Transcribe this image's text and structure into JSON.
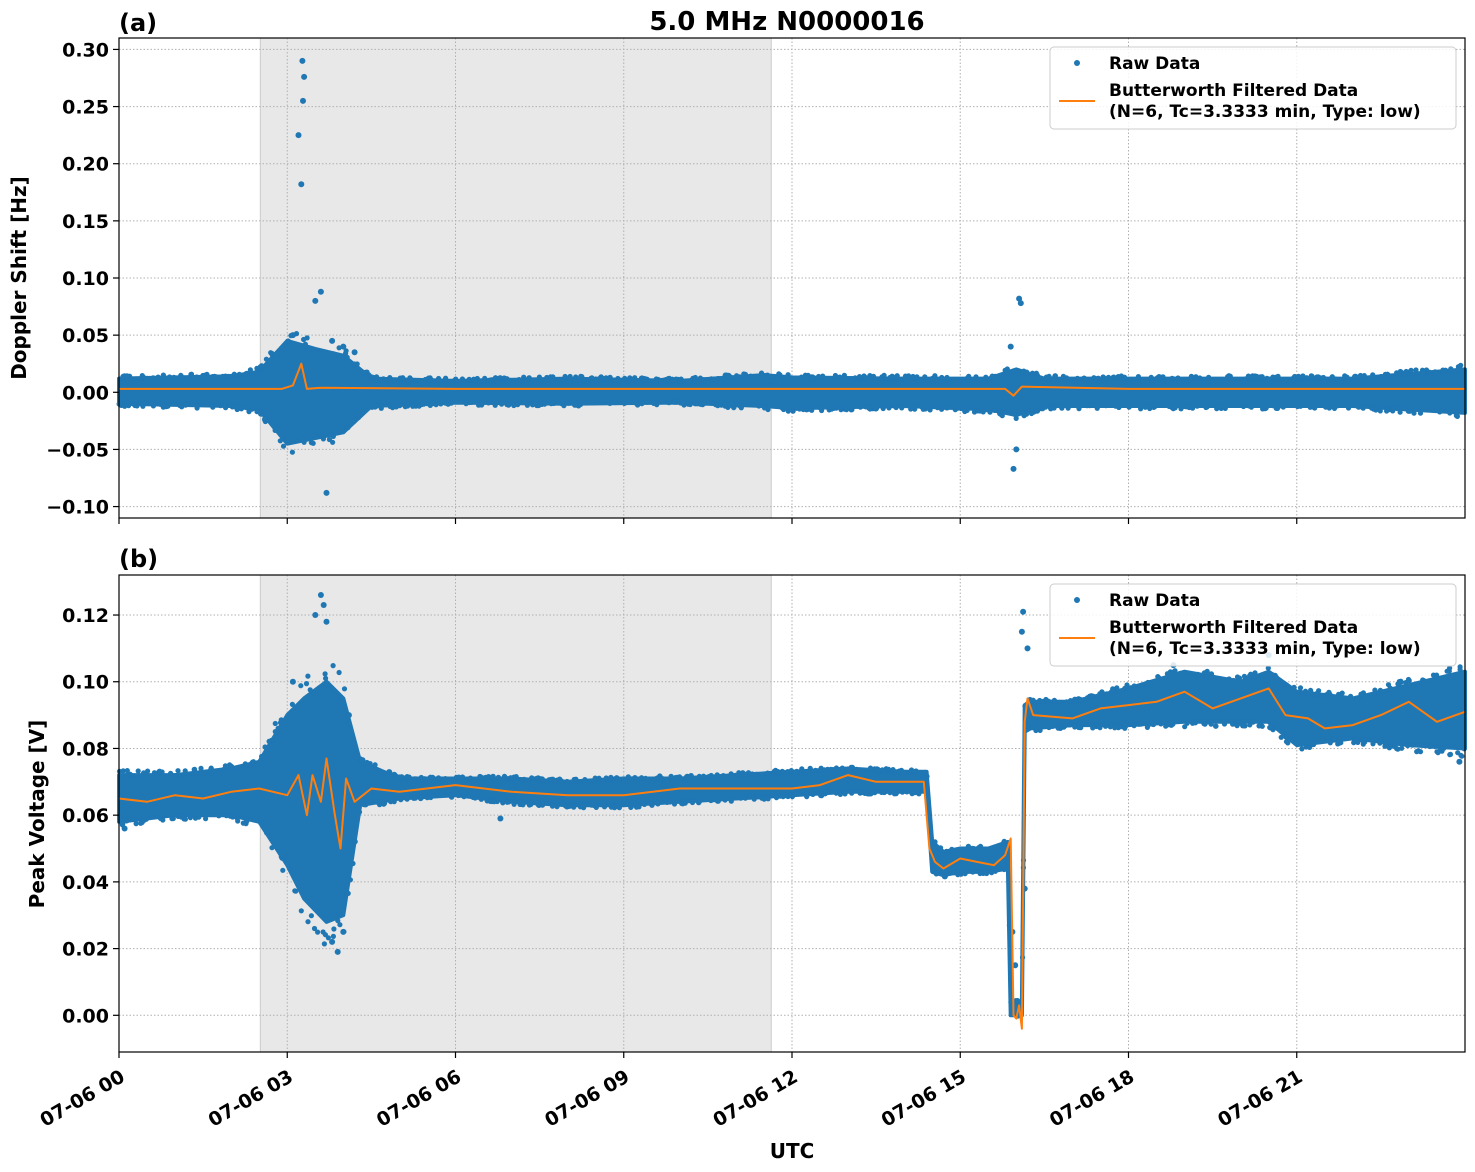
{
  "title": "5.0 MHz N0000016",
  "xlabel": "UTC",
  "x_ticks": [
    "07-06 00",
    "07-06 03",
    "07-06 06",
    "07-06 09",
    "07-06 12",
    "07-06 15",
    "07-06 18",
    "07-06 21"
  ],
  "colors": {
    "raw": "#1f77b4",
    "filtered": "#ff7f0e",
    "shade": "#e8e8e8"
  },
  "legend": {
    "raw": "Raw Data",
    "filtered_line1": "Butterworth Filtered Data",
    "filtered_line2": "(N=6, Tc=3.3333 min, Type: low)"
  },
  "panels": {
    "a": {
      "label": "(a)",
      "ylabel": "Doppler Shift [Hz]",
      "y_ticks": [
        "0.30",
        "0.25",
        "0.20",
        "0.15",
        "0.10",
        "0.05",
        "0.00",
        "−0.05",
        "−0.10"
      ]
    },
    "b": {
      "label": "(b)",
      "ylabel": "Peak Voltage [V]",
      "y_ticks": [
        "0.12",
        "0.10",
        "0.08",
        "0.06",
        "0.04",
        "0.02",
        "0.00"
      ]
    }
  },
  "chart_data": [
    {
      "type": "scatter",
      "panel": "(a)",
      "title": "5.0 MHz N0000016",
      "xlabel": "",
      "ylabel": "Doppler Shift [Hz]",
      "x_unit": "hours UTC on 07-06",
      "xlim": [
        0,
        24
      ],
      "ylim": [
        -0.11,
        0.31
      ],
      "grid": true,
      "legend_position": "top-right",
      "shaded_region_x": [
        2.52,
        11.63
      ],
      "series": [
        {
          "name": "Raw Data",
          "style": "points",
          "x": [
            0.5,
            2.0,
            2.9,
            3.1,
            3.2,
            3.25,
            3.27,
            3.28,
            3.3,
            3.5,
            3.6,
            3.7,
            3.8,
            4.0,
            4.2,
            8.0,
            11.6,
            14.0,
            15.9,
            15.95,
            16.0,
            16.05,
            16.08,
            23.9
          ],
          "y": [
            0.0,
            0.0,
            0.03,
            0.05,
            0.225,
            0.182,
            0.29,
            0.255,
            0.276,
            0.08,
            0.088,
            -0.088,
            0.045,
            0.04,
            0.035,
            0.0,
            0.01,
            0.0,
            0.04,
            -0.067,
            -0.05,
            0.082,
            0.078,
            0.02
          ],
          "envelope": {
            "x": [
              0,
              2,
              2.5,
              3.0,
              3.5,
              4.0,
              4.5,
              6,
              8,
              10,
              11.5,
              12,
              14,
              15.5,
              16.0,
              16.5,
              18,
              20,
              22,
              24
            ],
            "upper": [
              0.012,
              0.014,
              0.018,
              0.045,
              0.038,
              0.032,
              0.012,
              0.01,
              0.012,
              0.01,
              0.015,
              0.013,
              0.012,
              0.012,
              0.02,
              0.012,
              0.012,
              0.012,
              0.012,
              0.02
            ],
            "lower": [
              -0.01,
              -0.012,
              -0.015,
              -0.045,
              -0.04,
              -0.035,
              -0.012,
              -0.009,
              -0.01,
              -0.009,
              -0.012,
              -0.014,
              -0.012,
              -0.015,
              -0.02,
              -0.012,
              -0.012,
              -0.012,
              -0.012,
              -0.018
            ]
          }
        },
        {
          "name": "Butterworth Filtered Data\n(N=6, Tc=3.3333 min, Type: low)",
          "style": "line",
          "x": [
            0,
            2.9,
            3.1,
            3.25,
            3.35,
            3.6,
            6,
            10,
            14,
            15.8,
            15.95,
            16.1,
            18,
            24
          ],
          "y": [
            0.003,
            0.003,
            0.006,
            0.025,
            0.003,
            0.004,
            0.003,
            0.003,
            0.003,
            0.003,
            -0.003,
            0.005,
            0.003,
            0.003
          ]
        }
      ]
    },
    {
      "type": "scatter",
      "panel": "(b)",
      "title": "",
      "xlabel": "UTC",
      "ylabel": "Peak Voltage [V]",
      "x_unit": "hours UTC on 07-06",
      "xlim": [
        0,
        24
      ],
      "ylim": [
        -0.011,
        0.132
      ],
      "grid": true,
      "legend_position": "top-right",
      "shaded_region_x": [
        2.52,
        11.63
      ],
      "series": [
        {
          "name": "Raw Data",
          "style": "points",
          "x": [
            0.1,
            3.1,
            3.5,
            3.6,
            3.65,
            3.7,
            3.8,
            3.9,
            4.0,
            4.1,
            6.8,
            15.93,
            15.98,
            16.1,
            16.12,
            16.15,
            16.2,
            18.8,
            20.5,
            23.9
          ],
          "y": [
            0.056,
            0.1,
            0.12,
            0.126,
            0.123,
            0.118,
            0.022,
            0.019,
            0.025,
            0.09,
            0.059,
            0.025,
            0.015,
            0.115,
            0.121,
            0.038,
            0.11,
            0.105,
            0.108,
            0.076
          ],
          "envelope": {
            "x": [
              0,
              1,
              2,
              2.5,
              3.0,
              3.3,
              3.7,
              4.0,
              4.3,
              5,
              6,
              7,
              8,
              9,
              10,
              11,
              12,
              13,
              14,
              14.4,
              14.5,
              14.7,
              15,
              15.5,
              15.85,
              15.9,
              16.1,
              16.15,
              16.25,
              17,
              18,
              19,
              20,
              20.5,
              21,
              22,
              23,
              24
            ],
            "upper": [
              0.072,
              0.072,
              0.074,
              0.076,
              0.09,
              0.095,
              0.1,
              0.095,
              0.076,
              0.071,
              0.071,
              0.071,
              0.07,
              0.071,
              0.071,
              0.072,
              0.073,
              0.074,
              0.073,
              0.073,
              0.052,
              0.049,
              0.05,
              0.05,
              0.052,
              0.004,
              0.004,
              0.093,
              0.094,
              0.094,
              0.098,
              0.103,
              0.1,
              0.103,
              0.097,
              0.095,
              0.099,
              0.103
            ],
            "lower": [
              0.058,
              0.06,
              0.06,
              0.058,
              0.045,
              0.035,
              0.028,
              0.03,
              0.063,
              0.065,
              0.066,
              0.064,
              0.063,
              0.063,
              0.064,
              0.065,
              0.066,
              0.067,
              0.067,
              0.067,
              0.043,
              0.042,
              0.043,
              0.043,
              0.044,
              0.0,
              0.0,
              0.085,
              0.086,
              0.087,
              0.087,
              0.088,
              0.088,
              0.088,
              0.081,
              0.083,
              0.081,
              0.08
            ]
          }
        },
        {
          "name": "Butterworth Filtered Data\n(N=6, Tc=3.3333 min, Type: low)",
          "style": "line",
          "x": [
            0,
            0.5,
            1,
            1.5,
            2,
            2.5,
            3.0,
            3.2,
            3.35,
            3.45,
            3.6,
            3.7,
            3.85,
            3.95,
            4.05,
            4.2,
            4.5,
            5,
            6,
            7,
            8,
            9,
            10,
            11,
            12,
            12.5,
            13,
            13.5,
            14,
            14.35,
            14.45,
            14.55,
            14.7,
            15,
            15.3,
            15.6,
            15.8,
            15.9,
            15.95,
            16.0,
            16.05,
            16.1,
            16.15,
            16.2,
            16.3,
            17,
            17.5,
            18,
            18.5,
            19,
            19.5,
            20,
            20.5,
            20.8,
            21.2,
            21.5,
            22,
            22.5,
            23,
            23.5,
            24
          ],
          "y": [
            0.065,
            0.064,
            0.066,
            0.065,
            0.067,
            0.068,
            0.066,
            0.072,
            0.06,
            0.072,
            0.064,
            0.077,
            0.06,
            0.05,
            0.071,
            0.064,
            0.068,
            0.067,
            0.069,
            0.067,
            0.066,
            0.066,
            0.068,
            0.068,
            0.068,
            0.069,
            0.072,
            0.07,
            0.07,
            0.07,
            0.05,
            0.046,
            0.044,
            0.047,
            0.046,
            0.045,
            0.048,
            0.053,
            0.0,
            -0.001,
            0.003,
            -0.004,
            0.088,
            0.095,
            0.09,
            0.089,
            0.092,
            0.093,
            0.094,
            0.097,
            0.092,
            0.095,
            0.098,
            0.09,
            0.089,
            0.086,
            0.087,
            0.09,
            0.094,
            0.088,
            0.091
          ]
        }
      ]
    }
  ]
}
